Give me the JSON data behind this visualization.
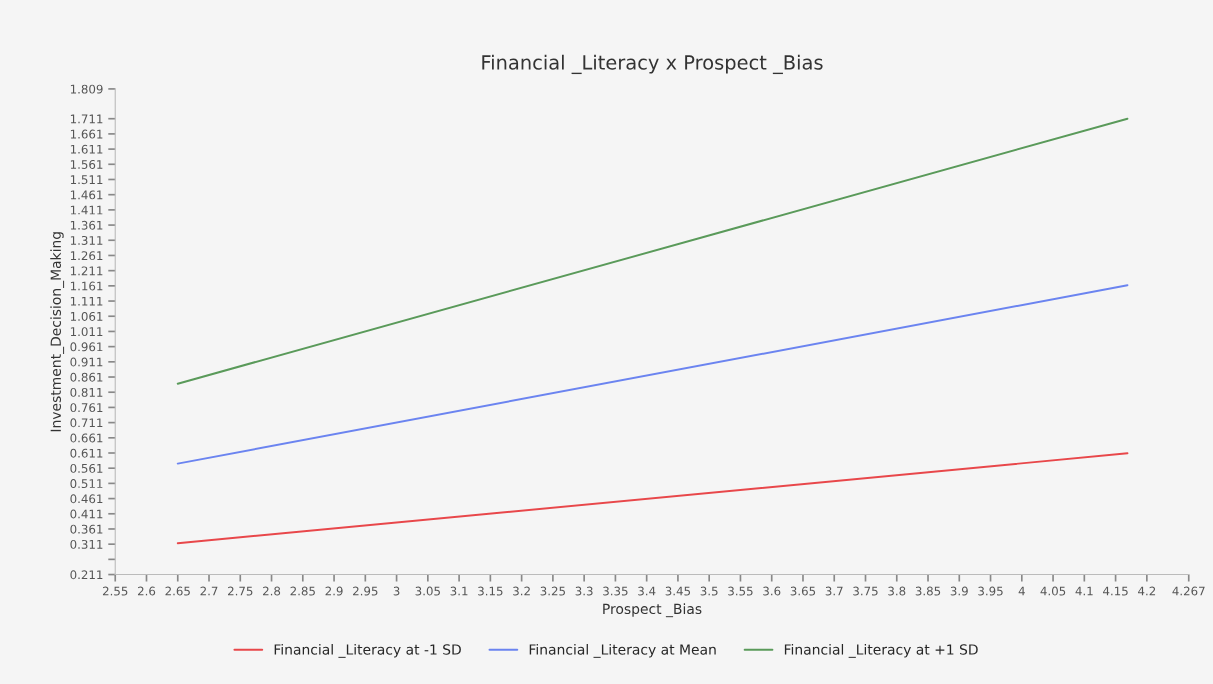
{
  "chart_data": {
    "type": "line",
    "title": "Financial _Literacy x Prospect _Bias",
    "xlabel": "Prospect _Bias",
    "ylabel": "Investment_Decision_Making",
    "x": [
      2.65,
      4.169
    ],
    "series": [
      {
        "name": "Financial _Literacy at -1 SD",
        "color": "#e8474a",
        "values": [
          0.314,
          0.61
        ]
      },
      {
        "name": "Financial _Literacy at Mean",
        "color": "#6b84f0",
        "values": [
          0.576,
          1.163
        ]
      },
      {
        "name": "Financial _Literacy at +1 SD",
        "color": "#5a9a5a",
        "values": [
          0.839,
          1.711
        ]
      }
    ],
    "xlim": [
      2.55,
      4.267
    ],
    "xticks": [
      2.55,
      2.6,
      2.65,
      2.7,
      2.75,
      2.8,
      2.85,
      2.9,
      2.95,
      3,
      3.05,
      3.1,
      3.15,
      3.2,
      3.25,
      3.3,
      3.35,
      3.4,
      3.45,
      3.5,
      3.55,
      3.6,
      3.65,
      3.7,
      3.75,
      3.8,
      3.85,
      3.9,
      3.95,
      4,
      4.05,
      4.1,
      4.15,
      4.2,
      4.267
    ],
    "ylim": [
      0.211,
      1.809
    ],
    "yticks": [
      0.211,
      {
        "value": 0.261,
        "label": null
      },
      0.311,
      0.361,
      0.411,
      0.461,
      0.511,
      0.561,
      0.611,
      0.661,
      0.711,
      0.761,
      0.811,
      0.861,
      0.911,
      0.961,
      1.011,
      1.061,
      1.111,
      1.161,
      1.211,
      1.261,
      1.311,
      1.361,
      1.411,
      1.461,
      1.511,
      1.561,
      1.611,
      1.661,
      1.711,
      1.809
    ],
    "legend": "bottom",
    "grid": false,
    "marker": "none",
    "line_style": "solid"
  }
}
